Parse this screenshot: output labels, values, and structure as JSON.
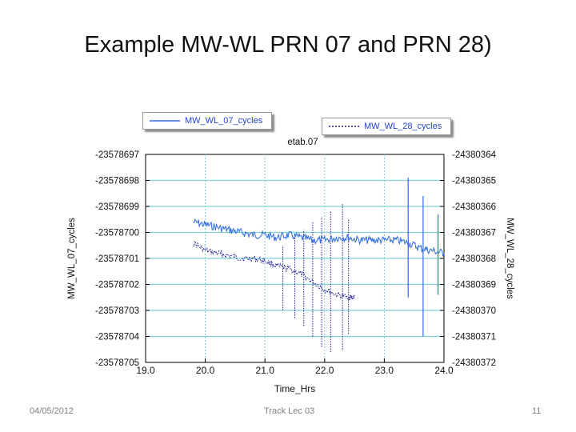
{
  "slide": {
    "title": "Example MW-WL PRN 07 and  PRN 28)",
    "date": "04/05/2012",
    "course": "Track Lec 03",
    "page_number": "11"
  },
  "colors": {
    "series_07": "#2f6be0",
    "series_28": "#1a1a9c",
    "grid": "#7fd0d8"
  },
  "chart_data": {
    "type": "line",
    "title": "etab.07",
    "xlabel": "Time_Hrs",
    "ylabel_left": "MW_WL_07_cycles",
    "ylabel_right": "MW_WL_28_cycles",
    "xlim": [
      19.0,
      24.0
    ],
    "x_ticks": [
      "19.0",
      "20.0",
      "21.0",
      "22.0",
      "23.0",
      "24.0"
    ],
    "ylim_left": [
      -23578705,
      -23578697
    ],
    "ylim_right": [
      -24380372,
      -24380364
    ],
    "y_ticks_left": [
      "-23578697",
      "-23578698",
      "-23578699",
      "-23578700",
      "-23578701",
      "-23578702",
      "-23578703",
      "-23578704",
      "-23578705"
    ],
    "y_ticks_right": [
      "-24380364",
      "-24380365",
      "-24380366",
      "-24380367",
      "-24380368",
      "-24380369",
      "-24380370",
      "-24380371",
      "-24380372"
    ],
    "grid": true,
    "legend": [
      "top-left",
      "top-right"
    ],
    "series": [
      {
        "name": "MW_WL_07_cycles",
        "axis": "left",
        "style": "solid",
        "x": [
          19.8,
          20.0,
          20.2,
          20.4,
          20.6,
          20.8,
          21.0,
          21.2,
          21.4,
          21.6,
          21.8,
          22.0,
          22.2,
          22.4,
          22.6,
          22.8,
          23.0,
          23.2,
          23.4,
          23.6,
          23.8,
          24.0
        ],
        "y": [
          -23578699.6,
          -23578699.7,
          -23578699.8,
          -23578699.9,
          -23578700.0,
          -23578700.1,
          -23578700.1,
          -23578700.2,
          -23578700.1,
          -23578700.2,
          -23578700.3,
          -23578700.3,
          -23578700.2,
          -23578700.2,
          -23578700.3,
          -23578700.3,
          -23578700.3,
          -23578700.3,
          -23578700.4,
          -23578700.6,
          -23578700.7,
          -23578700.8
        ],
        "spike_x": [
          23.4,
          23.65,
          23.9
        ],
        "spike_y": [
          [
            -23578702.5,
            -23578697.9
          ],
          [
            -23578704.0,
            -23578698.6
          ],
          [
            -23578702.4,
            -23578699.3
          ]
        ]
      },
      {
        "name": "MW_WL_28_cycles",
        "axis": "right",
        "style": "dotted",
        "x": [
          19.8,
          20.0,
          20.2,
          20.4,
          20.6,
          20.8,
          21.0,
          21.2,
          21.4,
          21.6,
          21.8,
          22.0,
          22.2,
          22.4,
          22.5
        ],
        "y": [
          -24380367.4,
          -24380367.7,
          -24380367.8,
          -24380367.9,
          -24380368.0,
          -24380368.0,
          -24380368.1,
          -24380368.3,
          -24380368.4,
          -24380368.6,
          -24380368.9,
          -24380369.2,
          -24380369.4,
          -24380369.5,
          -24380369.5
        ],
        "spike_x": [
          21.3,
          21.5,
          21.65,
          21.8,
          21.95,
          22.1,
          22.3,
          22.4
        ],
        "spike_y": [
          [
            -24380370.0,
            -24380367.5
          ],
          [
            -24380370.3,
            -24380367.2
          ],
          [
            -24380370.6,
            -24380366.9
          ],
          [
            -24380371.0,
            -24380366.6
          ],
          [
            -24380371.4,
            -24380366.4
          ],
          [
            -24380371.6,
            -24380366.2
          ],
          [
            -24380371.5,
            -24380365.9
          ],
          [
            -24380370.9,
            -24380366.5
          ]
        ]
      }
    ]
  }
}
